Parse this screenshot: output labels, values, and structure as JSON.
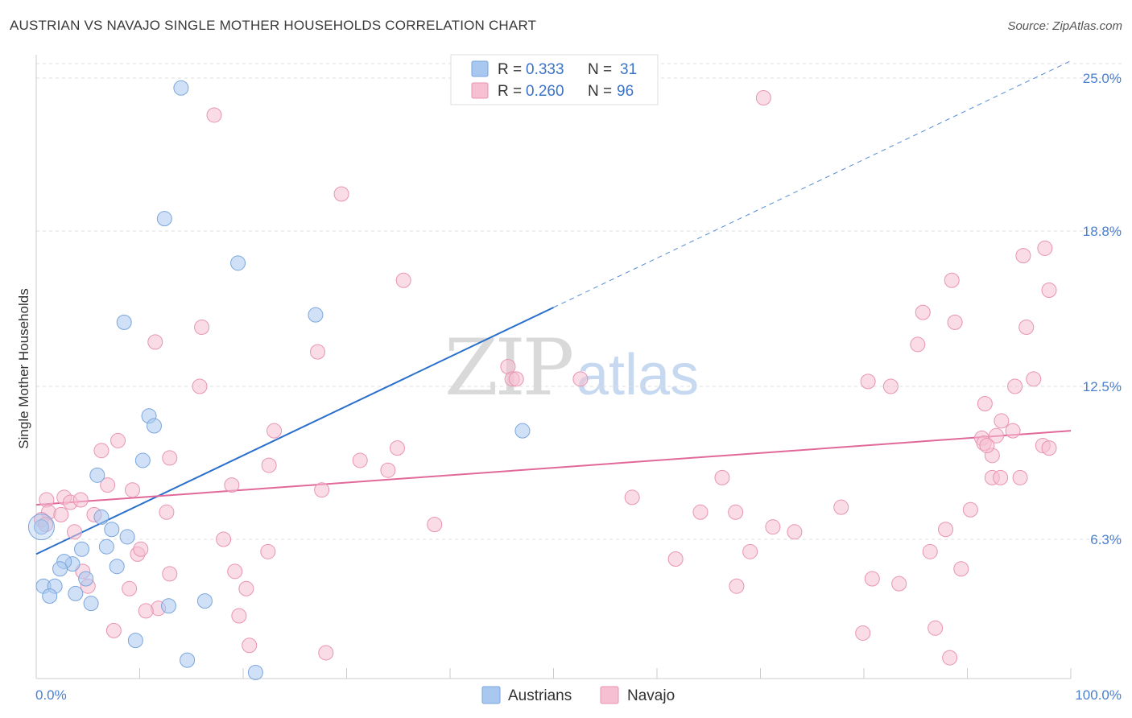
{
  "title": "AUSTRIAN VS NAVAJO SINGLE MOTHER HOUSEHOLDS CORRELATION CHART",
  "source": "Source: ZipAtlas.com",
  "watermark": {
    "zip": "ZIP",
    "atlas": "atlas"
  },
  "colors": {
    "blue_fill": "#a9c8f0",
    "blue_stroke": "#7aa6dc",
    "blue_line": "#2a6fcc",
    "pink_fill": "#f6c0d2",
    "pink_stroke": "#e894b2",
    "pink_line": "#e0699a",
    "tick_text": "#4a7fd0",
    "grid": "#dddddd"
  },
  "legend": {
    "rows": [
      {
        "r_label": "R =",
        "r_value": "0.333",
        "n_label": "N =",
        "n_value": "31"
      },
      {
        "r_label": "R =",
        "r_value": "0.260",
        "n_label": "N =",
        "n_value": "96"
      }
    ]
  },
  "chart_data": {
    "type": "scatter",
    "title": "AUSTRIAN VS NAVAJO SINGLE MOTHER HOUSEHOLDS CORRELATION CHART",
    "xlabel": "",
    "ylabel": "Single Mother Households",
    "xlim": [
      0,
      100
    ],
    "ylim": [
      0,
      26
    ],
    "x_tick_labels": [
      "0.0%",
      "100.0%"
    ],
    "y_ticks": [
      6.3,
      12.5,
      18.8,
      25.0
    ],
    "y_tick_labels": [
      "6.3%",
      "12.5%",
      "18.8%",
      "25.0%"
    ],
    "grid": true,
    "legend_position": "top-center",
    "series": [
      {
        "name": "Austrians",
        "color": "#a9c8f0",
        "r": 0.333,
        "n": 31,
        "trend": {
          "x0": 0,
          "y0": 5.7,
          "x1": 50,
          "y1": 15.7,
          "dashed_to_x": 100,
          "dashed_to_y": 25.7
        },
        "points": [
          [
            14,
            24.6
          ],
          [
            12.4,
            19.3
          ],
          [
            19.5,
            17.5
          ],
          [
            8.5,
            15.1
          ],
          [
            27,
            15.4
          ],
          [
            10.9,
            11.3
          ],
          [
            11.4,
            10.9
          ],
          [
            10.3,
            9.5
          ],
          [
            47,
            10.7
          ],
          [
            5.9,
            8.9
          ],
          [
            6.3,
            7.2
          ],
          [
            7.3,
            6.7
          ],
          [
            8.8,
            6.4
          ],
          [
            6.8,
            6.0
          ],
          [
            4.4,
            5.9
          ],
          [
            0.5,
            6.8
          ],
          [
            3.5,
            5.3
          ],
          [
            2.7,
            5.4
          ],
          [
            2.3,
            5.1
          ],
          [
            7.8,
            5.2
          ],
          [
            4.8,
            4.7
          ],
          [
            0.7,
            4.4
          ],
          [
            1.8,
            4.4
          ],
          [
            3.8,
            4.1
          ],
          [
            1.3,
            4.0
          ],
          [
            5.3,
            3.7
          ],
          [
            12.8,
            3.6
          ],
          [
            16.3,
            3.8
          ],
          [
            9.6,
            2.2
          ],
          [
            14.6,
            1.4
          ],
          [
            21.2,
            0.9
          ]
        ]
      },
      {
        "name": "Navajo",
        "color": "#f6c0d2",
        "r": 0.26,
        "n": 96,
        "trend": {
          "x0": 0,
          "y0": 7.7,
          "x1": 100,
          "y1": 10.7
        },
        "points": [
          [
            17.2,
            23.5
          ],
          [
            70.3,
            24.2
          ],
          [
            29.5,
            20.3
          ],
          [
            35.5,
            16.8
          ],
          [
            16.0,
            14.9
          ],
          [
            11.5,
            14.3
          ],
          [
            27.2,
            13.9
          ],
          [
            45.6,
            13.3
          ],
          [
            46.0,
            12.8
          ],
          [
            46.4,
            12.8
          ],
          [
            52.6,
            12.8
          ],
          [
            15.8,
            12.5
          ],
          [
            7.9,
            10.3
          ],
          [
            6.3,
            9.9
          ],
          [
            12.9,
            9.6
          ],
          [
            23.0,
            10.7
          ],
          [
            34.9,
            10.0
          ],
          [
            31.3,
            9.5
          ],
          [
            34.0,
            9.1
          ],
          [
            22.5,
            9.3
          ],
          [
            6.9,
            8.5
          ],
          [
            9.3,
            8.3
          ],
          [
            18.9,
            8.5
          ],
          [
            27.6,
            8.3
          ],
          [
            1.0,
            7.9
          ],
          [
            2.7,
            8.0
          ],
          [
            3.3,
            7.8
          ],
          [
            4.3,
            7.9
          ],
          [
            1.2,
            7.4
          ],
          [
            2.4,
            7.3
          ],
          [
            5.6,
            7.3
          ],
          [
            12.6,
            7.4
          ],
          [
            0.5,
            7.1
          ],
          [
            0.9,
            6.9
          ],
          [
            3.7,
            6.6
          ],
          [
            38.5,
            6.9
          ],
          [
            18.1,
            6.3
          ],
          [
            22.4,
            5.8
          ],
          [
            9.8,
            5.7
          ],
          [
            10.1,
            5.9
          ],
          [
            4.5,
            5.0
          ],
          [
            5.0,
            4.4
          ],
          [
            9.0,
            4.3
          ],
          [
            12.9,
            4.9
          ],
          [
            19.2,
            5.0
          ],
          [
            20.3,
            4.3
          ],
          [
            11.8,
            3.5
          ],
          [
            10.6,
            3.4
          ],
          [
            19.6,
            3.2
          ],
          [
            7.5,
            2.6
          ],
          [
            20.6,
            2.0
          ],
          [
            28.0,
            1.7
          ],
          [
            57.6,
            8.0
          ],
          [
            66.3,
            8.8
          ],
          [
            64.2,
            7.4
          ],
          [
            67.6,
            7.4
          ],
          [
            71.2,
            6.8
          ],
          [
            73.3,
            6.6
          ],
          [
            77.8,
            7.6
          ],
          [
            69.0,
            5.8
          ],
          [
            61.8,
            5.5
          ],
          [
            67.7,
            4.4
          ],
          [
            80.4,
            12.7
          ],
          [
            82.6,
            12.5
          ],
          [
            80.8,
            4.7
          ],
          [
            83.4,
            4.5
          ],
          [
            79.9,
            2.5
          ],
          [
            85.2,
            14.2
          ],
          [
            85.7,
            15.5
          ],
          [
            88.8,
            15.1
          ],
          [
            88.5,
            16.8
          ],
          [
            86.4,
            5.8
          ],
          [
            87.9,
            6.7
          ],
          [
            86.9,
            2.7
          ],
          [
            88.3,
            1.5
          ],
          [
            89.4,
            5.1
          ],
          [
            90.3,
            7.5
          ],
          [
            92.4,
            9.7
          ],
          [
            92.4,
            8.8
          ],
          [
            92.8,
            10.5
          ],
          [
            91.4,
            10.4
          ],
          [
            91.6,
            10.2
          ],
          [
            91.9,
            10.1
          ],
          [
            93.3,
            11.1
          ],
          [
            91.7,
            11.8
          ],
          [
            93.2,
            8.8
          ],
          [
            94.6,
            12.5
          ],
          [
            94.4,
            10.7
          ],
          [
            95.1,
            8.8
          ],
          [
            95.4,
            17.8
          ],
          [
            95.7,
            14.9
          ],
          [
            96.4,
            12.8
          ],
          [
            97.5,
            18.1
          ],
          [
            97.9,
            16.4
          ],
          [
            97.3,
            10.1
          ],
          [
            97.9,
            10.0
          ]
        ]
      }
    ]
  }
}
